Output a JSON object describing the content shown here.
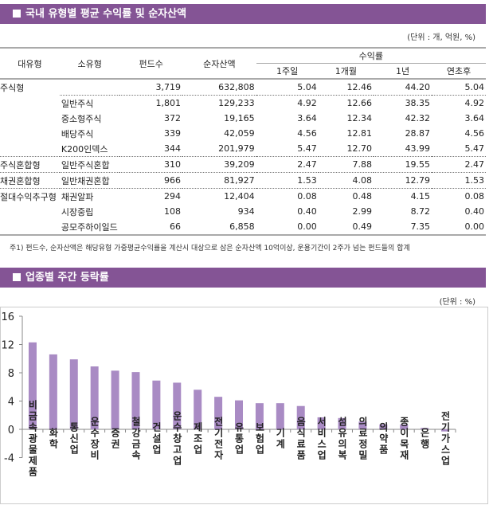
{
  "section1": {
    "title": "국내 유형별 평균 수익률 및 순자산액",
    "unit": "(단위 : 개, 억원, %)",
    "headers": {
      "major": "대유형",
      "minor": "소유형",
      "funds": "펀드수",
      "assets": "순자산액",
      "returns": "수익률",
      "w1": "1주일",
      "m1": "1개월",
      "y1": "1년",
      "ytd": "연초후"
    },
    "rows": [
      [
        "주식형",
        "",
        "3,719",
        "632,808",
        "5.04",
        "12.46",
        "44.20",
        "5.04"
      ],
      [
        "",
        "일반주식",
        "1,801",
        "129,233",
        "4.92",
        "12.66",
        "38.35",
        "4.92"
      ],
      [
        "",
        "중소형주식",
        "372",
        "19,165",
        "3.64",
        "12.34",
        "42.32",
        "3.64"
      ],
      [
        "",
        "배당주식",
        "339",
        "42,059",
        "4.56",
        "12.81",
        "28.87",
        "4.56"
      ],
      [
        "",
        "K200인덱스",
        "344",
        "201,979",
        "5.47",
        "12.70",
        "43.99",
        "5.47"
      ],
      [
        "주식혼합형",
        "일반주식혼합",
        "310",
        "39,209",
        "2.47",
        "7.88",
        "19.55",
        "2.47"
      ],
      [
        "채권혼합형",
        "일반채권혼합",
        "966",
        "81,927",
        "1.53",
        "4.08",
        "12.79",
        "1.53"
      ],
      [
        "절대수익추구형",
        "채권알파",
        "294",
        "12,404",
        "0.08",
        "0.48",
        "4.15",
        "0.08"
      ],
      [
        "",
        "시장중립",
        "108",
        "934",
        "0.40",
        "2.99",
        "8.72",
        "0.40"
      ],
      [
        "",
        "공모주하이일드",
        "66",
        "6,858",
        "0.00",
        "0.49",
        "7.35",
        "0.00"
      ]
    ],
    "note": "주1) 펀드수, 순자산액은 해당유형 가중평균수익률을 계산시 대상으로 삼은 순자산액 10억이상, 운용기간이 2주가 넘는 펀드들의 합계"
  },
  "section2": {
    "title": "업종별 주간 등락률",
    "unit": "(단위 : %)"
  },
  "chart_data": {
    "type": "bar",
    "ylim": [
      -4,
      16
    ],
    "yticks": [
      "16",
      "12",
      "8",
      "4",
      "0",
      "-4"
    ],
    "color": "#a98bc4",
    "categories": [
      "비금속광물제품",
      "화학",
      "통신업",
      "운수장비",
      "증권",
      "철강금속",
      "건설업",
      "운수창고업",
      "제조업",
      "전기전자",
      "유통업",
      "보험업",
      "기계",
      "음식료품",
      "서비스업",
      "섬유의복",
      "의료정밀",
      "의약품",
      "종이목재",
      "은행",
      "전기가스업"
    ],
    "values": [
      12.3,
      10.6,
      9.9,
      8.9,
      8.3,
      8.1,
      6.9,
      6.6,
      5.6,
      4.6,
      4.1,
      3.7,
      3.7,
      3.3,
      1.7,
      1.6,
      1.1,
      0.7,
      0.7,
      0.2,
      -0.3
    ]
  }
}
